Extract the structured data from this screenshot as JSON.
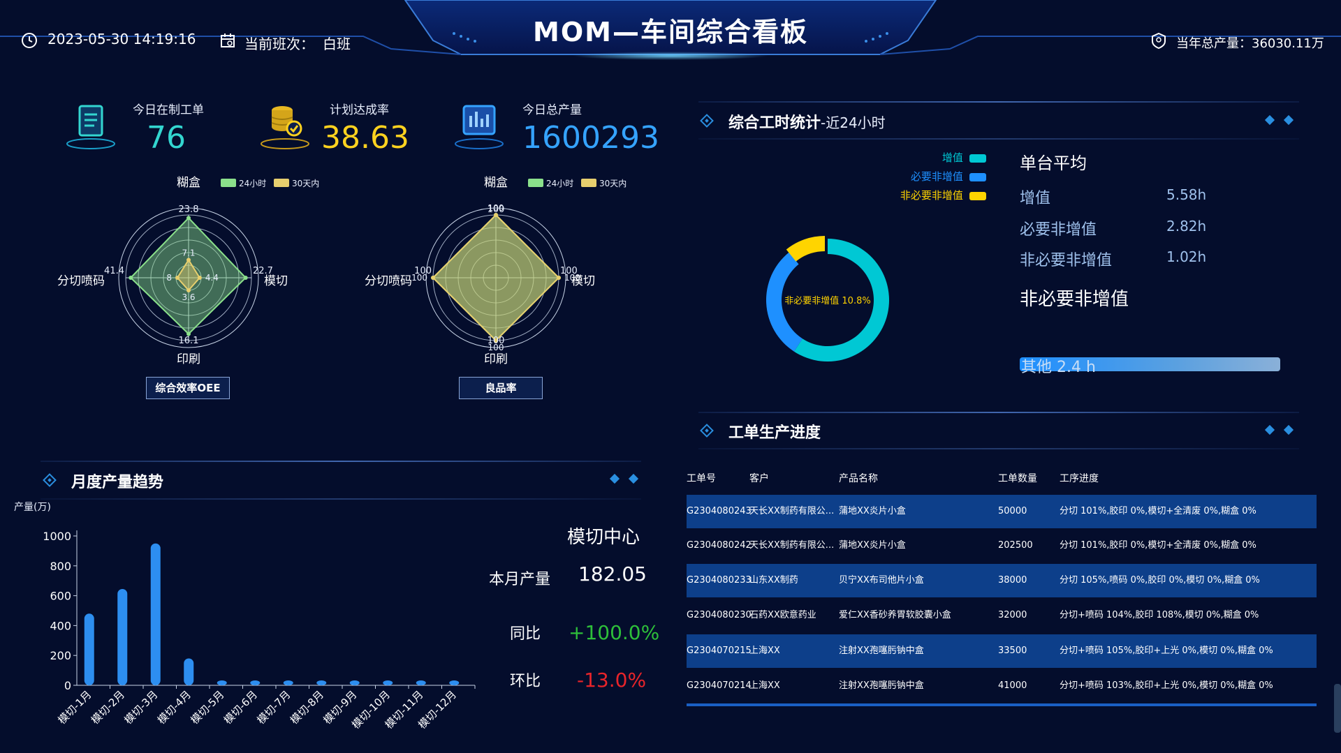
{
  "header": {
    "datetime": "2023-05-30 14:19:16",
    "shift_label": "当前班次：",
    "shift_value": "白班",
    "title": "MOM—车间综合看板",
    "annual_label": "当年总产量：",
    "annual_value": "36030.11万"
  },
  "kpis": [
    {
      "label": "今日在制工单",
      "value": "76",
      "color": "#33d6d0",
      "icon": "clipboard-icon"
    },
    {
      "label": "计划达成率",
      "value": "38.63",
      "color": "#ffd21f",
      "icon": "coin-stack-icon"
    },
    {
      "label": "今日总产量",
      "value": "1600293",
      "color": "#35a3ff",
      "icon": "bar-chart-icon"
    }
  ],
  "radar_oee": {
    "title": "综合效率OEE",
    "legend": [
      "24小时",
      "30天内"
    ],
    "axes": [
      "糊盒",
      "模切",
      "印刷",
      "分切喷码"
    ],
    "series_24h_labels": [
      "23.8",
      "22.7",
      "16.1",
      "41.4"
    ],
    "series_30d_labels": [
      "7.1",
      "4.4",
      "3.6",
      "8"
    ],
    "series_24h": [
      23.8,
      22.7,
      16.1,
      41.4
    ],
    "series_30d": [
      7.1,
      4.4,
      3.6,
      8
    ],
    "max": [
      25,
      25,
      18,
      45
    ]
  },
  "radar_yield": {
    "title": "良品率",
    "legend": [
      "24小时",
      "30天内"
    ],
    "axes": [
      "糊盒",
      "模切",
      "印刷",
      "分切喷码"
    ],
    "series_24h_labels": [
      "100",
      "100",
      "100",
      "100"
    ],
    "series_30d_labels": [
      "100",
      "100",
      "100",
      "100"
    ],
    "series_24h": [
      100,
      100,
      100,
      100
    ],
    "series_30d": [
      100,
      100,
      100,
      100
    ],
    "max": [
      100,
      100,
      100,
      100
    ]
  },
  "monthly": {
    "title": "月度产量趋势",
    "center_name": "模切中心",
    "month_label": "本月产量",
    "month_value": "182.05",
    "yoy_label": "同比",
    "yoy_value": "+100.0%",
    "mom_label": "环比",
    "mom_value": "-13.0%"
  },
  "chart_data": {
    "type": "bar",
    "ylabel": "产量(万)",
    "ylim": [
      0,
      1000
    ],
    "yticks": [
      "0",
      "200",
      "400",
      "600",
      "800",
      "1000"
    ],
    "categories": [
      "模切-1月",
      "模切-2月",
      "模切-3月",
      "模切-4月",
      "模切-5月",
      "模切-6月",
      "模切-7月",
      "模切-8月",
      "模切-9月",
      "模切-10月",
      "模切-11月",
      "模切-12月"
    ],
    "values": [
      480,
      645,
      950,
      180,
      20,
      20,
      20,
      20,
      20,
      20,
      20,
      20
    ],
    "grid": false
  },
  "worktime": {
    "title": "综合工时统计",
    "subtitle": "-近24小时",
    "legend": [
      {
        "name": "增值",
        "color": "#00c8d4"
      },
      {
        "name": "必要非增值",
        "color": "#1e90ff"
      },
      {
        "name": "非必要非增值",
        "color": "#ffd400"
      }
    ],
    "donut_label": "非必要非增值 10.8%",
    "donut_values": [
      59.2,
      30.0,
      10.8
    ],
    "avg_title": "单台平均",
    "avg_rows": [
      {
        "label": "增值",
        "value": "5.58h"
      },
      {
        "label": "必要非增值",
        "value": "2.82h"
      },
      {
        "label": "非必要非增值",
        "value": "1.02h"
      }
    ],
    "section2_title": "非必要非增值",
    "other_label": "其他 2.4 h"
  },
  "orders": {
    "title": "工单生产进度",
    "columns": [
      "工单号",
      "客户",
      "产品名称",
      "工单数量",
      "工序进度"
    ],
    "rows": [
      {
        "id": "G2304080243",
        "customer": "天长XX制药有限公...",
        "product": "蒲地XX炎片小盒",
        "qty": "50000",
        "progress": "分切 101%,胶印 0%,模切+全清废 0%,糊盒 0%"
      },
      {
        "id": "G2304080242",
        "customer": "天长XX制药有限公...",
        "product": "蒲地XX炎片小盒",
        "qty": "202500",
        "progress": "分切 101%,胶印 0%,模切+全清废 0%,糊盒 0%"
      },
      {
        "id": "G2304080233",
        "customer": "山东XX制药",
        "product": "贝宁XX布司他片小盒",
        "qty": "38000",
        "progress": "分切 105%,喷码 0%,胶印 0%,模切 0%,糊盒 0%"
      },
      {
        "id": "G2304080230",
        "customer": "石药XX欧意药业",
        "product": "爱仁XX香砂养胃软胶囊小盒",
        "qty": "32000",
        "progress": "分切+喷码 104%,胶印 108%,模切 0%,糊盒 0%"
      },
      {
        "id": "G2304070215",
        "customer": "上海XX",
        "product": "注射XX孢噻肟钠中盒",
        "qty": "33500",
        "progress": "分切+喷码 105%,胶印+上光 0%,模切 0%,糊盒 0%"
      },
      {
        "id": "G2304070214",
        "customer": "上海XX",
        "product": "注射XX孢噻肟钠中盒",
        "qty": "41000",
        "progress": "分切+喷码 103%,胶印+上光 0%,模切 0%,糊盒 0%"
      }
    ]
  }
}
